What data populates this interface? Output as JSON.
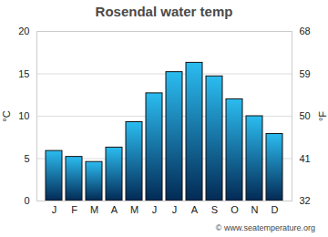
{
  "chart_data": {
    "type": "bar",
    "title": "Rosendal water temp",
    "categories": [
      "J",
      "F",
      "M",
      "A",
      "M",
      "J",
      "J",
      "A",
      "S",
      "O",
      "N",
      "D"
    ],
    "values": [
      5.9,
      5.2,
      4.6,
      6.3,
      9.3,
      12.7,
      15.2,
      16.3,
      14.7,
      12.0,
      10.0,
      7.9
    ],
    "color": "#2bbcf0",
    "ylabel": "°C",
    "ylim": [
      0,
      20
    ],
    "yticks": [
      0,
      5,
      10,
      15,
      20
    ],
    "y2label": "°F",
    "y2lim": [
      32,
      68
    ],
    "y2ticks": [
      32,
      41,
      50,
      59,
      68
    ],
    "grid": true,
    "caption": "© www.seatemperature.org"
  }
}
